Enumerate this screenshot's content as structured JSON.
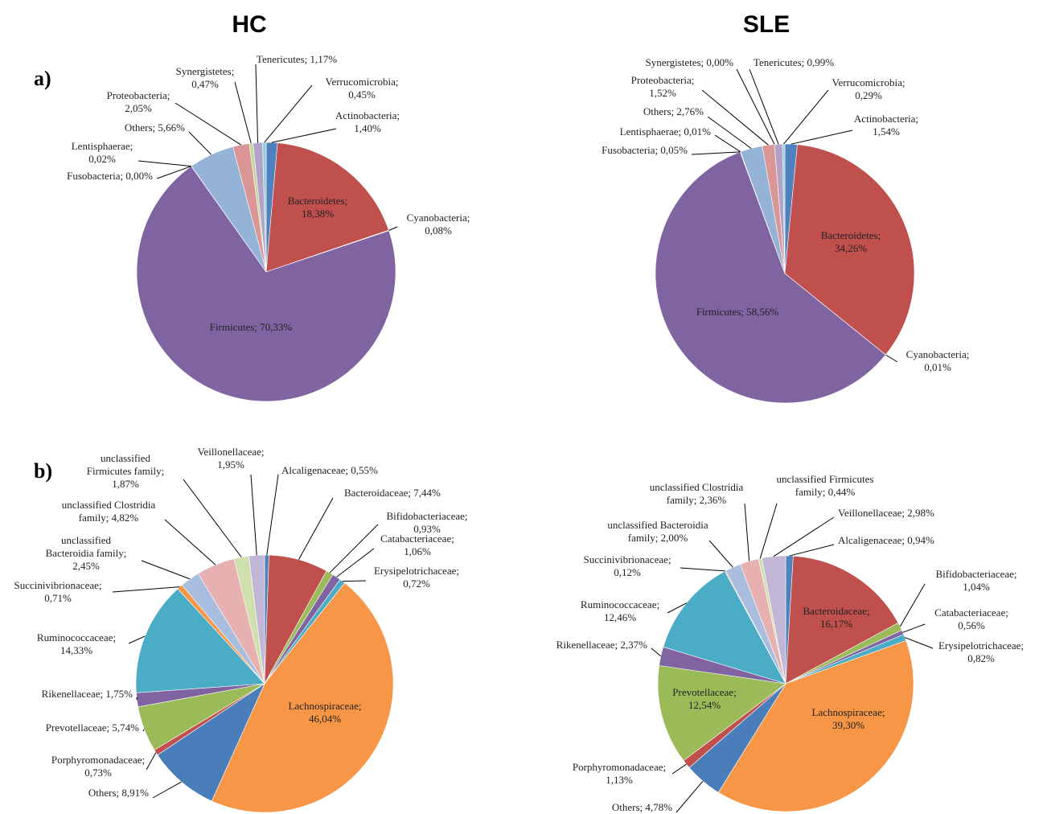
{
  "header": {
    "left": "HC",
    "right": "SLE"
  },
  "panels": [
    "a)",
    "b)"
  ],
  "chart_data": [
    {
      "type": "pie",
      "values": [
        1.4,
        18.38,
        0.08,
        70.33,
        0.0,
        0.02,
        5.66,
        2.05,
        0.47,
        1.17,
        0.45
      ],
      "value_labels": [
        "Actinobacteria;\n1,40%",
        "Bacteroidetes;\n18,38%",
        "Cyanobacteria;\n0,08%",
        "Firmicutes; 70,33%",
        "Fusobacteria; 0,00%",
        "Lentisphaerae;\n0,02%",
        "Others; 5,66%",
        "Proteobacteria;\n2,05%",
        "Synergistetes;\n0,47%",
        "Tenericutes; 1,17%",
        "Verrucomicrobia;\n0,45%"
      ],
      "colors": [
        "#4f81bd",
        "#c0504d",
        "#9bbb59",
        "#8064a2",
        "#4bacc6",
        "#f79646",
        "#95b3d7",
        "#d99694",
        "#c3d69b",
        "#b3a2c7",
        "#93cddd"
      ]
    },
    {
      "type": "pie",
      "values": [
        1.54,
        34.26,
        0.01,
        58.56,
        0.05,
        0.01,
        2.76,
        1.52,
        0.0,
        0.99,
        0.29
      ],
      "value_labels": [
        "Actinobacteria;\n1,54%",
        "Bacteroidetes;\n34,26%",
        "Cyanobacteria;\n0,01%",
        "Firmicutes; 58,56%",
        "Fusobacteria; 0,05%",
        "Lentisphaerae; 0,01%",
        "Others; 2,76%",
        "Proteobacteria;\n1,52%",
        "Synergistetes; 0,00%",
        "Tenericutes; 0,99%",
        "Verrucomicrobia;\n0,29%"
      ],
      "colors": [
        "#4f81bd",
        "#c0504d",
        "#9bbb59",
        "#8064a2",
        "#4bacc6",
        "#f79646",
        "#95b3d7",
        "#d99694",
        "#c3d69b",
        "#b3a2c7",
        "#93cddd"
      ]
    },
    {
      "type": "pie",
      "values": [
        0.55,
        7.44,
        0.93,
        1.06,
        0.72,
        46.04,
        8.91,
        0.73,
        5.74,
        1.75,
        14.33,
        0.71,
        2.45,
        4.82,
        1.87,
        1.95
      ],
      "value_labels": [
        "Alcaligenaceae; 0,55%",
        "Bacteroidaceae; 7,44%",
        "Bifidobacteriaceae;\n0,93%",
        "Catabacteriaceae;\n1,06%",
        "Erysipelotrichaceae;\n0,72%",
        "Lachnospiraceae;\n46,04%",
        "Others; 8,91%",
        "Porphyromonadaceae;\n0,73%",
        "Prevotellaceae; 5,74%",
        "Rikenellaceae; 1,75%",
        "Ruminococcaceae;\n14,33%",
        "Succinivibrionaceae;\n0,71%",
        "unclassified\nBacteroidia family;\n2,45%",
        "unclassified Clostridia\nfamily; 4,82%",
        "unclassified\nFirmicutes family;\n1,87%",
        "Veillonellaceae;\n1,95%"
      ],
      "colors": [
        "#4f81bd",
        "#c0504d",
        "#9bbb59",
        "#8064a2",
        "#4bacc6",
        "#f79646",
        "#4a7ebb",
        "#c0504d",
        "#9bbb59",
        "#8064a2",
        "#4bacc6",
        "#f79646",
        "#a9bedf",
        "#e6b1b0",
        "#cfe0ac",
        "#c2b6d6"
      ]
    },
    {
      "type": "pie",
      "values": [
        0.94,
        16.17,
        1.04,
        0.56,
        0.82,
        39.3,
        4.78,
        1.13,
        12.54,
        2.37,
        12.46,
        0.12,
        2.0,
        2.36,
        0.44,
        2.98
      ],
      "value_labels": [
        "Alcaligenaceae; 0,94%",
        "Bacteroidaceae;\n16,17%",
        "Bifidobacteriaceae;\n1,04%",
        "Catabacteriaceae;\n0,56%",
        "Erysipelotrichaceae;\n0,82%",
        "Lachnospiraceae;\n39,30%",
        "Others; 4,78%",
        "Porphyromonadaceae;\n1,13%",
        "Prevotellaceae;\n12,54%",
        "Rikenellaceae; 2,37%",
        "Ruminococcaceae;\n12,46%",
        "Succinivibrionaceae;\n0,12%",
        "unclassified Bacteroidia\nfamily; 2,00%",
        "unclassified Clostridia\nfamily; 2,36%",
        "unclassified Firmicutes\nfamily; 0,44%",
        "Veillonellaceae; 2,98%"
      ],
      "colors": [
        "#4f81bd",
        "#c0504d",
        "#9bbb59",
        "#8064a2",
        "#4bacc6",
        "#f79646",
        "#4a7ebb",
        "#c0504d",
        "#9bbb59",
        "#8064a2",
        "#4bacc6",
        "#f79646",
        "#a9bedf",
        "#e6b1b0",
        "#cfe0ac",
        "#c2b6d6"
      ]
    }
  ]
}
